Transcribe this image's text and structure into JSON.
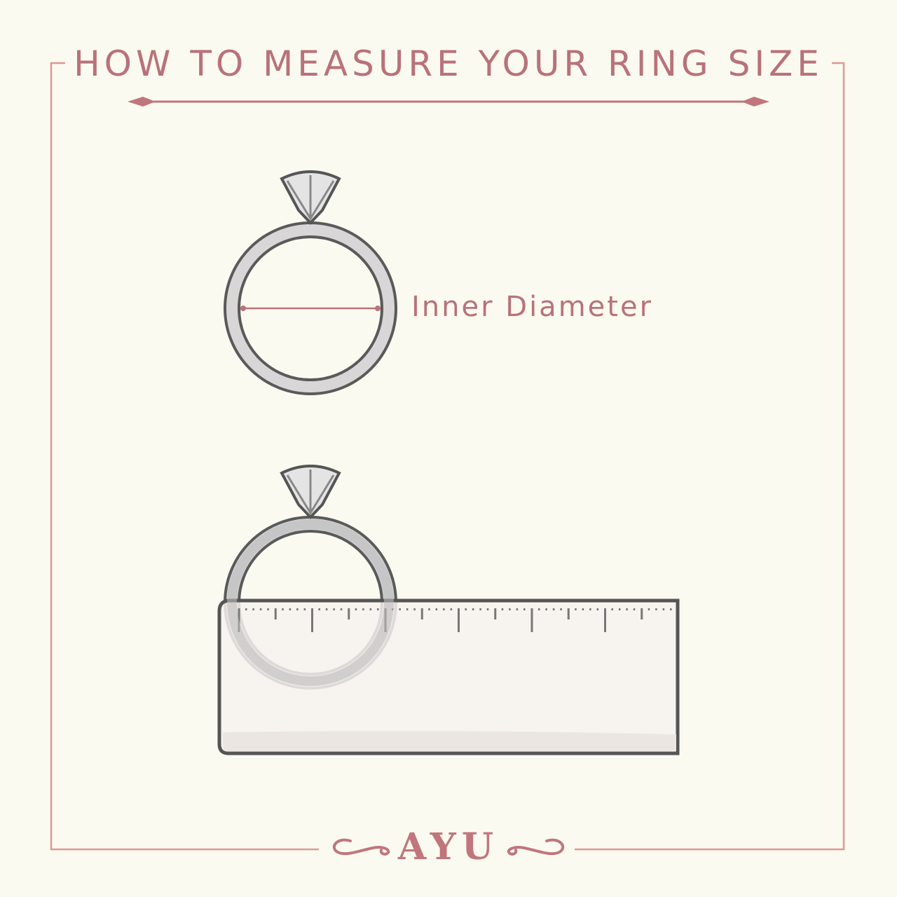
{
  "title": "HOW TO MEASURE YOUR RING SIZE",
  "inner_diameter_label": "Inner Diameter",
  "brand": "AYU",
  "colors": {
    "accent": "#b97279",
    "frame": "#dc9a90",
    "background": "#fbfaf1",
    "ring": "#5a5a5a",
    "ruler": "#f6f1ee"
  },
  "icons": [
    "ring-with-diamond-icon",
    "ruler-icon",
    "flourish-icon"
  ]
}
